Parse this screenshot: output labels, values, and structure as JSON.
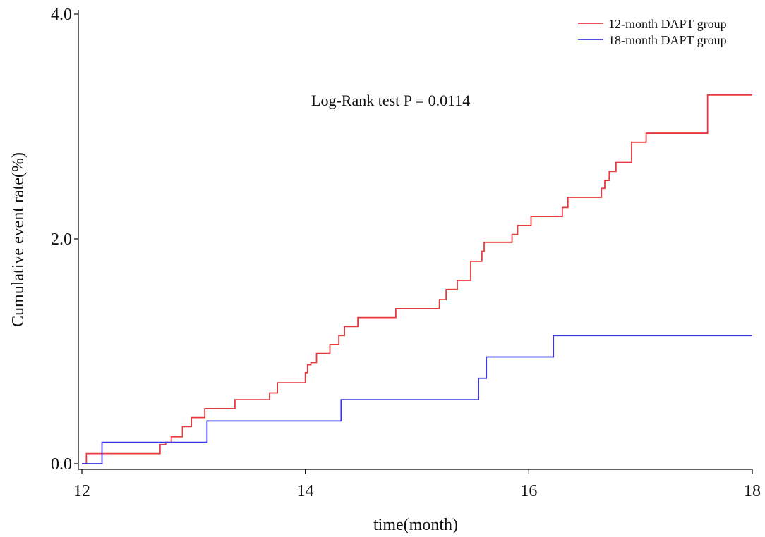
{
  "chart_data": {
    "type": "line",
    "step": "post",
    "xlabel": "time(month)",
    "ylabel": "Cumulative event rate(%)",
    "xlim": [
      12,
      18
    ],
    "ylim": [
      0,
      4
    ],
    "x_ticks": [
      "12",
      "14",
      "16",
      "18"
    ],
    "y_ticks": [
      "0.0",
      "2.0",
      "4.0"
    ],
    "grid": false,
    "legend_position": "top-right",
    "annotation": "Log-Rank test P = 0.0114",
    "colors": {
      "12-month DAPT group": "#e8393e",
      "18-month DAPT group": "#3a36e6"
    },
    "series": [
      {
        "name": "12-month DAPT group",
        "x": [
          12,
          12.04,
          12.7,
          12.75,
          12.8,
          12.9,
          12.98,
          13.1,
          13.37,
          13.68,
          13.75,
          14.0,
          14.02,
          14.05,
          14.1,
          14.22,
          14.3,
          14.35,
          14.47,
          14.81,
          15.2,
          15.26,
          15.36,
          15.48,
          15.58,
          15.6,
          15.85,
          15.9,
          16.02,
          16.3,
          16.35,
          16.65,
          16.68,
          16.72,
          16.78,
          16.92,
          17.05,
          17.1,
          17.6,
          18
        ],
        "y": [
          0.0,
          0.09,
          0.17,
          0.19,
          0.24,
          0.33,
          0.41,
          0.49,
          0.57,
          0.63,
          0.72,
          0.81,
          0.88,
          0.9,
          0.98,
          1.06,
          1.14,
          1.22,
          1.3,
          1.38,
          1.46,
          1.55,
          1.63,
          1.8,
          1.89,
          1.97,
          2.04,
          2.12,
          2.2,
          2.28,
          2.37,
          2.45,
          2.52,
          2.6,
          2.68,
          2.86,
          2.94,
          2.94,
          3.28,
          3.28
        ]
      },
      {
        "name": "18-month DAPT group",
        "x": [
          12,
          12.18,
          13.12,
          14.32,
          15.55,
          15.62,
          16.22,
          18
        ],
        "y": [
          0.0,
          0.19,
          0.38,
          0.57,
          0.76,
          0.95,
          1.14,
          1.14
        ]
      }
    ]
  }
}
